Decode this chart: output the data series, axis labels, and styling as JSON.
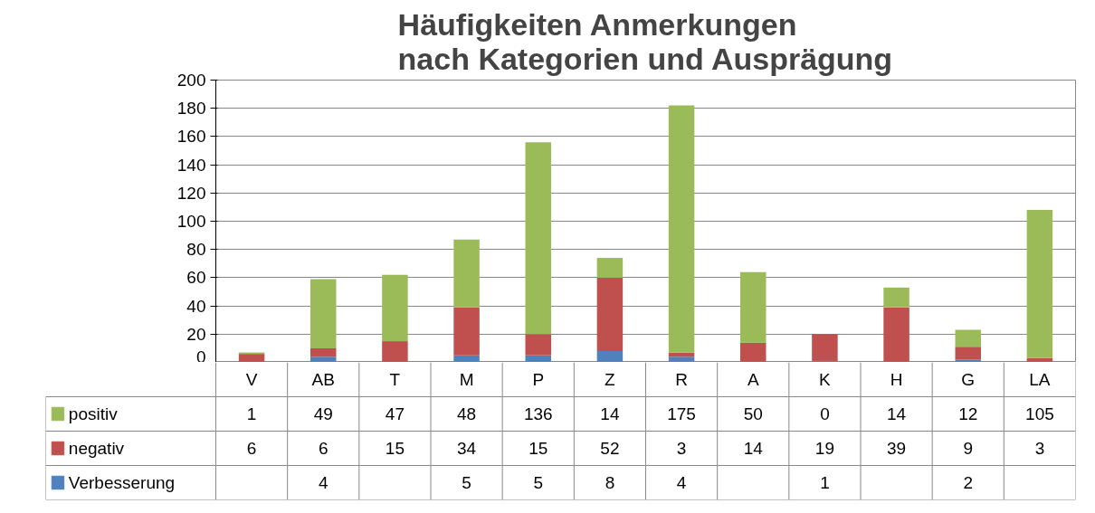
{
  "chart_data": {
    "type": "bar",
    "title": "Häufigkeiten Anmerkungen\nnach Kategorien und Ausprägung",
    "categories": [
      "V",
      "AB",
      "T",
      "M",
      "P",
      "Z",
      "R",
      "A",
      "K",
      "H",
      "G",
      "LA"
    ],
    "stacked": true,
    "series": [
      {
        "name": "Verbesserung",
        "color": "#4f81bd",
        "values": [
          null,
          4,
          null,
          5,
          5,
          8,
          4,
          null,
          1,
          null,
          2,
          null
        ]
      },
      {
        "name": "negativ",
        "color": "#c0504d",
        "values": [
          6,
          6,
          15,
          34,
          15,
          52,
          3,
          14,
          19,
          39,
          9,
          3
        ]
      },
      {
        "name": "positiv",
        "color": "#9bbb59",
        "values": [
          1,
          49,
          47,
          48,
          136,
          14,
          175,
          50,
          0,
          14,
          12,
          105
        ]
      }
    ],
    "ylim": [
      0,
      200
    ],
    "yticks": [
      0,
      20,
      40,
      60,
      80,
      100,
      120,
      140,
      160,
      180,
      200
    ],
    "grid": "y",
    "data_labels": true,
    "legend": "bottom"
  }
}
